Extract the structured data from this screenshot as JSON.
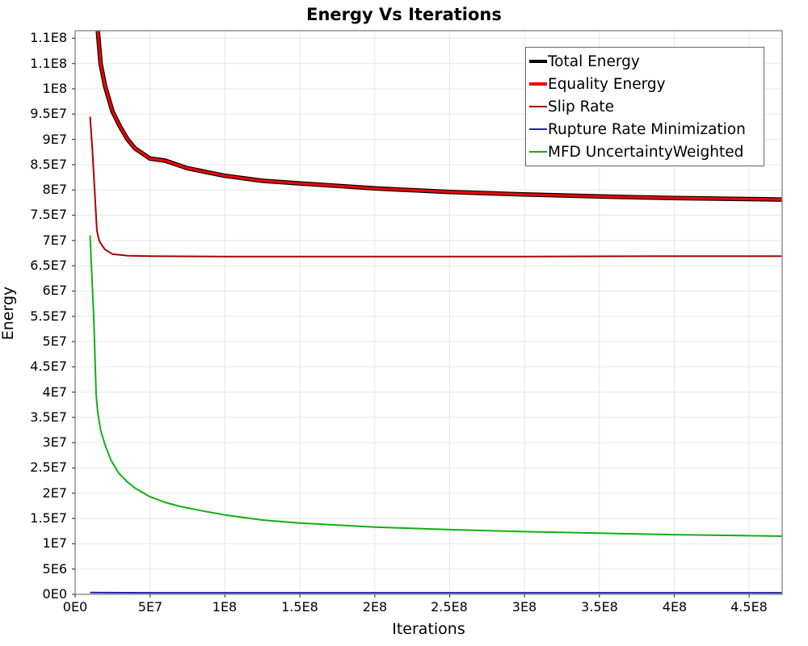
{
  "chart_data": {
    "type": "line",
    "title": "Energy Vs Iterations",
    "xlabel": "Iterations",
    "ylabel": "Energy",
    "xlim": [
      0,
      472000000
    ],
    "ylim": [
      0,
      111500000
    ],
    "grid": true,
    "legend_position": "top-right-inside",
    "background_color": "#ffffff",
    "gridline_color": "#e7e7e7",
    "plot_border_color": "#8a8a8a",
    "x_ticks": {
      "values": [
        0,
        50000000.0,
        100000000.0,
        150000000.0,
        200000000.0,
        250000000.0,
        300000000.0,
        350000000.0,
        400000000.0,
        450000000.0
      ],
      "labels": [
        "0E0",
        "5E7",
        "1E8",
        "1.5E8",
        "2E8",
        "2.5E8",
        "3E8",
        "3.5E8",
        "4E8",
        "4.5E8"
      ]
    },
    "y_ticks": {
      "values": [
        0,
        5000000.0,
        10000000.0,
        15000000.0,
        20000000.0,
        25000000.0,
        30000000.0,
        35000000.0,
        40000000.0,
        45000000.0,
        50000000.0,
        55000000.0,
        60000000.0,
        65000000.0,
        70000000.0,
        75000000.0,
        80000000.0,
        85000000.0,
        90000000.0,
        95000000.0,
        100000000.0,
        105000000.0,
        110000000.0
      ],
      "labels": [
        "0E0",
        "5E6",
        "1E7",
        "1.5E7",
        "2E7",
        "2.5E7",
        "3E7",
        "3.5E7",
        "4E7",
        "4.5E7",
        "5E7",
        "5.5E7",
        "6E7",
        "6.5E7",
        "7E7",
        "7.5E7",
        "8E7",
        "8.5E7",
        "9E7",
        "9.5E7",
        "1E8",
        "1.1E8",
        "1.1E8"
      ]
    },
    "series": [
      {
        "name": "Total Energy",
        "color": "#000000",
        "line_width": 5.5,
        "points": [
          [
            10000000.0,
            130000000.0
          ],
          [
            15000000.0,
            112000000.0
          ],
          [
            17000000.0,
            105000000.0
          ],
          [
            20000000.0,
            100500000.0
          ],
          [
            25000000.0,
            95500000.0
          ],
          [
            30000000.0,
            92500000.0
          ],
          [
            35000000.0,
            90000000.0
          ],
          [
            40000000.0,
            88200000.0
          ],
          [
            50000000.0,
            86200000.0
          ],
          [
            60000000.0,
            85800000.0
          ],
          [
            75000000.0,
            84300000.0
          ],
          [
            100000000.0,
            82800000.0
          ],
          [
            125000000.0,
            81800000.0
          ],
          [
            150000000.0,
            81300000.0
          ],
          [
            200000000.0,
            80300000.0
          ],
          [
            250000000.0,
            79600000.0
          ],
          [
            300000000.0,
            79100000.0
          ],
          [
            350000000.0,
            78700000.0
          ],
          [
            400000000.0,
            78400000.0
          ],
          [
            450000000.0,
            78200000.0
          ],
          [
            472000000.0,
            78100000.0
          ]
        ]
      },
      {
        "name": "Equality Energy",
        "color": "#ee0000",
        "line_width": 3.2,
        "points": [
          [
            10000000.0,
            130000000.0
          ],
          [
            15000000.0,
            112000000.0
          ],
          [
            17000000.0,
            105000000.0
          ],
          [
            20000000.0,
            100500000.0
          ],
          [
            25000000.0,
            95500000.0
          ],
          [
            30000000.0,
            92500000.0
          ],
          [
            35000000.0,
            90000000.0
          ],
          [
            40000000.0,
            88200000.0
          ],
          [
            50000000.0,
            86200000.0
          ],
          [
            60000000.0,
            85800000.0
          ],
          [
            75000000.0,
            84300000.0
          ],
          [
            100000000.0,
            82800000.0
          ],
          [
            125000000.0,
            81800000.0
          ],
          [
            150000000.0,
            81300000.0
          ],
          [
            200000000.0,
            80300000.0
          ],
          [
            250000000.0,
            79600000.0
          ],
          [
            300000000.0,
            79100000.0
          ],
          [
            350000000.0,
            78700000.0
          ],
          [
            400000000.0,
            78400000.0
          ],
          [
            450000000.0,
            78200000.0
          ],
          [
            472000000.0,
            78100000.0
          ]
        ]
      },
      {
        "name": "Slip Rate",
        "color": "#aa0000",
        "line_width": 2,
        "points": [
          [
            10000000.0,
            94500000.0
          ],
          [
            11500000.0,
            88000000.0
          ],
          [
            13000000.0,
            80000000.0
          ],
          [
            14500000.0,
            72000000.0
          ],
          [
            16000000.0,
            70000000.0
          ],
          [
            18000000.0,
            69000000.0
          ],
          [
            20000000.0,
            68200000.0
          ],
          [
            25000000.0,
            67300000.0
          ],
          [
            35000000.0,
            67000000.0
          ],
          [
            50000000.0,
            66900000.0
          ],
          [
            100000000.0,
            66800000.0
          ],
          [
            200000000.0,
            66800000.0
          ],
          [
            300000000.0,
            66800000.0
          ],
          [
            400000000.0,
            66900000.0
          ],
          [
            472000000.0,
            66900000.0
          ]
        ]
      },
      {
        "name": "Rupture Rate Minimization",
        "color": "#2222aa",
        "line_width": 2,
        "points": [
          [
            10000000.0,
            350000.0
          ],
          [
            50000000.0,
            300000.0
          ],
          [
            100000000.0,
            300000.0
          ],
          [
            200000000.0,
            300000.0
          ],
          [
            300000000.0,
            300000.0
          ],
          [
            400000000.0,
            300000.0
          ],
          [
            472000000.0,
            300000.0
          ]
        ]
      },
      {
        "name": "MFD UncertaintyWeighted",
        "color": "#10b010",
        "line_width": 2,
        "points": [
          [
            10000000.0,
            71000000.0
          ],
          [
            12500000.0,
            54000000.0
          ],
          [
            14000000.0,
            39500000.0
          ],
          [
            15000000.0,
            36200000.0
          ],
          [
            17000000.0,
            32500000.0
          ],
          [
            20000000.0,
            29500000.0
          ],
          [
            24000000.0,
            26500000.0
          ],
          [
            29000000.0,
            24000000.0
          ],
          [
            35000000.0,
            22200000.0
          ],
          [
            40000000.0,
            21000000.0
          ],
          [
            50000000.0,
            19300000.0
          ],
          [
            60000000.0,
            18200000.0
          ],
          [
            70000000.0,
            17400000.0
          ],
          [
            85000000.0,
            16500000.0
          ],
          [
            100000000.0,
            15700000.0
          ],
          [
            125000000.0,
            14700000.0
          ],
          [
            150000000.0,
            14100000.0
          ],
          [
            175000000.0,
            13700000.0
          ],
          [
            200000000.0,
            13300000.0
          ],
          [
            250000000.0,
            12800000.0
          ],
          [
            300000000.0,
            12400000.0
          ],
          [
            350000000.0,
            12100000.0
          ],
          [
            400000000.0,
            11800000.0
          ],
          [
            450000000.0,
            11600000.0
          ],
          [
            472000000.0,
            11500000.0
          ]
        ]
      }
    ]
  }
}
